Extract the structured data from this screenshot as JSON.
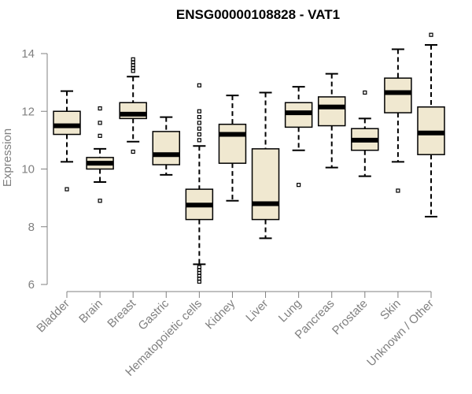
{
  "chart_data": {
    "type": "box",
    "title": "ENSG00000108828 - VAT1",
    "xlabel": "",
    "ylabel": "Expression",
    "ylim": [
      6,
      14
    ],
    "yticks": [
      6,
      8,
      10,
      12,
      14
    ],
    "box_fill": "#f0e8d0",
    "outline": "#000000",
    "categories": [
      "Bladder",
      "Brain",
      "Breast",
      "Gastric",
      "Hematopoietic cells",
      "Kidney",
      "Liver",
      "Lung",
      "Pancreas",
      "Prostate",
      "Skin",
      "Unknown / Other"
    ],
    "boxes": [
      {
        "min": 10.25,
        "q1": 11.2,
        "median": 11.5,
        "q3": 12.0,
        "max": 12.7,
        "outliers": [
          9.3
        ]
      },
      {
        "min": 9.55,
        "q1": 10.0,
        "median": 10.2,
        "q3": 10.4,
        "max": 10.7,
        "outliers": [
          8.9,
          11.15,
          11.6,
          12.1
        ]
      },
      {
        "min": 10.95,
        "q1": 11.75,
        "median": 11.9,
        "q3": 12.3,
        "max": 13.2,
        "outliers": [
          10.6,
          13.4,
          13.5,
          13.6,
          13.7,
          13.8
        ]
      },
      {
        "min": 9.8,
        "q1": 10.15,
        "median": 10.5,
        "q3": 11.3,
        "max": 11.8,
        "outliers": []
      },
      {
        "min": 6.7,
        "q1": 8.25,
        "median": 8.75,
        "q3": 9.3,
        "max": 10.8,
        "outliers": [
          6.1,
          6.2,
          6.3,
          6.4,
          6.5,
          6.6,
          11.0,
          11.2,
          11.4,
          11.6,
          11.8,
          12.0,
          12.9
        ]
      },
      {
        "min": 8.9,
        "q1": 10.2,
        "median": 11.2,
        "q3": 11.55,
        "max": 12.55,
        "outliers": []
      },
      {
        "min": 7.6,
        "q1": 8.25,
        "median": 8.8,
        "q3": 10.7,
        "max": 12.65,
        "outliers": []
      },
      {
        "min": 10.65,
        "q1": 11.45,
        "median": 11.95,
        "q3": 12.3,
        "max": 12.85,
        "outliers": [
          9.45
        ]
      },
      {
        "min": 10.05,
        "q1": 11.5,
        "median": 12.15,
        "q3": 12.5,
        "max": 13.3,
        "outliers": []
      },
      {
        "min": 9.75,
        "q1": 10.65,
        "median": 11.0,
        "q3": 11.4,
        "max": 11.75,
        "outliers": [
          12.65
        ]
      },
      {
        "min": 10.25,
        "q1": 11.95,
        "median": 12.65,
        "q3": 13.15,
        "max": 14.15,
        "outliers": [
          9.25
        ]
      },
      {
        "min": 8.35,
        "q1": 10.5,
        "median": 11.25,
        "q3": 12.15,
        "max": 14.3,
        "outliers": [
          14.65
        ]
      }
    ]
  }
}
